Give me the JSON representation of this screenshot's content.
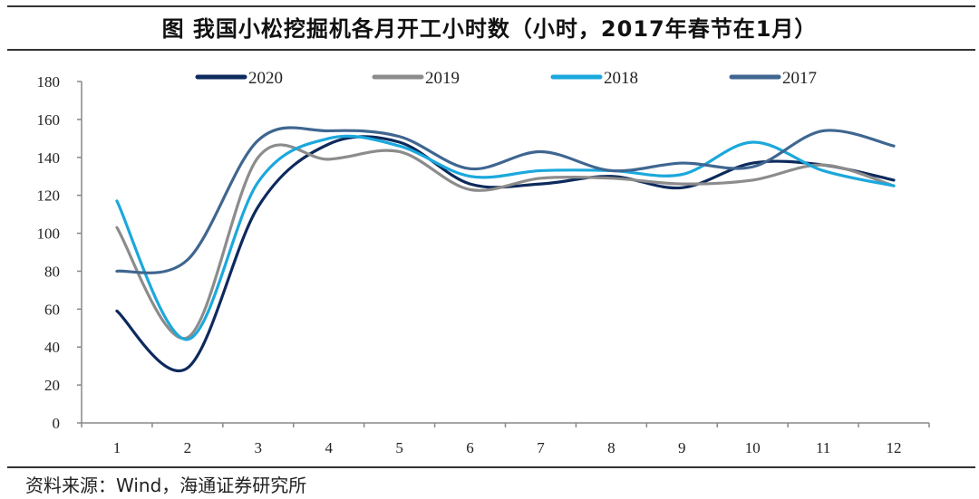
{
  "chart_data": {
    "type": "line",
    "title": "图 我国小松挖掘机各月开工小时数（小时，2017年春节在1月）",
    "xlabel": "",
    "ylabel": "",
    "categories": [
      "1",
      "2",
      "3",
      "4",
      "5",
      "6",
      "7",
      "8",
      "9",
      "10",
      "11",
      "12"
    ],
    "ylim": [
      0,
      180
    ],
    "yticks": [
      0,
      20,
      40,
      60,
      80,
      100,
      120,
      140,
      160,
      180
    ],
    "grid": false,
    "legend": "top",
    "series": [
      {
        "name": "2020",
        "color": "#0d2a5c",
        "values": [
          59,
          29,
          114,
          147,
          148,
          126,
          126,
          130,
          124,
          137,
          136,
          128
        ]
      },
      {
        "name": "2019",
        "color": "#8c8c8c",
        "values": [
          103,
          45,
          140,
          139,
          143,
          123,
          129,
          129,
          126,
          128,
          136,
          125
        ]
      },
      {
        "name": "2018",
        "color": "#1ba8dc",
        "values": [
          117,
          44,
          127,
          150,
          146,
          130,
          133,
          133,
          131,
          148,
          133,
          125
        ]
      },
      {
        "name": "2017",
        "color": "#3f6690",
        "values": [
          80,
          86,
          149,
          154,
          151,
          134,
          143,
          133,
          137,
          135,
          154,
          146
        ]
      }
    ]
  },
  "source": "资料来源：Wind，海通证券研究所"
}
